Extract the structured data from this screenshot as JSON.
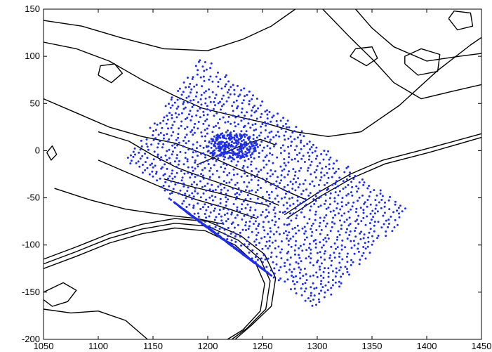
{
  "chart_data": {
    "type": "scatter",
    "title": "",
    "xlabel": "",
    "ylabel": "",
    "xlim": [
      1050,
      1450
    ],
    "ylim": [
      -200,
      150
    ],
    "x_ticks": [
      1050,
      1100,
      1150,
      1200,
      1250,
      1300,
      1350,
      1400,
      1450
    ],
    "y_ticks": [
      -200,
      -150,
      -100,
      -50,
      0,
      50,
      100,
      150
    ],
    "x_tick_labels": [
      "1050",
      "1100",
      "1150",
      "1200",
      "1250",
      "1300",
      "1350",
      "1400",
      "1450"
    ],
    "y_tick_labels": [
      "-200",
      "-150",
      "-100",
      "-50",
      "0",
      "50",
      "100",
      "150"
    ],
    "grid": false,
    "colors": {
      "points": "#1f2fe8",
      "contours": "#000000",
      "axes": "#000000"
    },
    "point_regions": {
      "outer_band_corners": [
        [
          1195,
          100
        ],
        [
          1385,
          -65
        ],
        [
          1300,
          -170
        ],
        [
          1125,
          -10
        ]
      ],
      "dense_core_center": [
        1222,
        5
      ],
      "dense_south_ridge": [
        [
          1175,
          -60
        ],
        [
          1250,
          -125
        ]
      ]
    },
    "contours": [
      [
        [
          1050,
          138
        ],
        [
          1085,
          132
        ],
        [
          1120,
          120
        ],
        [
          1160,
          108
        ],
        [
          1200,
          106
        ],
        [
          1232,
          118
        ],
        [
          1258,
          132
        ],
        [
          1280,
          150
        ]
      ],
      [
        [
          1050,
          115
        ],
        [
          1080,
          108
        ],
        [
          1110,
          95
        ],
        [
          1140,
          75
        ],
        [
          1170,
          58
        ],
        [
          1195,
          45
        ],
        [
          1220,
          38
        ],
        [
          1250,
          30
        ],
        [
          1280,
          20
        ],
        [
          1310,
          15
        ],
        [
          1340,
          20
        ],
        [
          1375,
          48
        ],
        [
          1410,
          85
        ],
        [
          1440,
          112
        ],
        [
          1450,
          120
        ]
      ],
      [
        [
          1305,
          150
        ],
        [
          1330,
          120
        ],
        [
          1352,
          95
        ],
        [
          1370,
          72
        ],
        [
          1395,
          55
        ],
        [
          1420,
          62
        ],
        [
          1450,
          70
        ]
      ],
      [
        [
          1335,
          150
        ],
        [
          1350,
          130
        ],
        [
          1370,
          110
        ],
        [
          1400,
          95
        ],
        [
          1430,
          100
        ],
        [
          1450,
          103
        ]
      ],
      [
        [
          1330,
          100
        ],
        [
          1345,
          90
        ],
        [
          1355,
          98
        ],
        [
          1350,
          110
        ],
        [
          1335,
          108
        ],
        [
          1330,
          100
        ]
      ],
      [
        [
          1380,
          92
        ],
        [
          1392,
          80
        ],
        [
          1410,
          84
        ],
        [
          1412,
          102
        ],
        [
          1395,
          108
        ],
        [
          1380,
          100
        ],
        [
          1380,
          92
        ]
      ],
      [
        [
          1420,
          140
        ],
        [
          1428,
          128
        ],
        [
          1442,
          132
        ],
        [
          1440,
          146
        ],
        [
          1425,
          148
        ],
        [
          1420,
          140
        ]
      ],
      [
        [
          1100,
          80
        ],
        [
          1112,
          72
        ],
        [
          1122,
          82
        ],
        [
          1115,
          92
        ],
        [
          1102,
          90
        ],
        [
          1100,
          80
        ]
      ],
      [
        [
          1050,
          55
        ],
        [
          1080,
          40
        ],
        [
          1110,
          25
        ],
        [
          1140,
          15
        ],
        [
          1170,
          8
        ],
        [
          1200,
          -5
        ],
        [
          1225,
          -18
        ],
        [
          1250,
          -30
        ],
        [
          1270,
          -42
        ],
        [
          1290,
          -52
        ]
      ],
      [
        [
          1100,
          20
        ],
        [
          1128,
          10
        ],
        [
          1150,
          -5
        ],
        [
          1172,
          -18
        ],
        [
          1195,
          -28
        ],
        [
          1220,
          -38
        ],
        [
          1245,
          -48
        ],
        [
          1265,
          -58
        ]
      ],
      [
        [
          1100,
          -10
        ],
        [
          1130,
          -25
        ],
        [
          1160,
          -40
        ],
        [
          1190,
          -52
        ],
        [
          1220,
          -62
        ],
        [
          1245,
          -72
        ]
      ],
      [
        [
          1060,
          -40
        ],
        [
          1092,
          -52
        ],
        [
          1125,
          -62
        ],
        [
          1160,
          -68
        ],
        [
          1190,
          -72
        ],
        [
          1215,
          -78
        ]
      ],
      [
        [
          1050,
          -115
        ],
        [
          1080,
          -102
        ],
        [
          1110,
          -88
        ],
        [
          1140,
          -78
        ],
        [
          1170,
          -72
        ],
        [
          1200,
          -75
        ],
        [
          1230,
          -90
        ],
        [
          1252,
          -110
        ],
        [
          1262,
          -135
        ],
        [
          1258,
          -165
        ],
        [
          1240,
          -185
        ],
        [
          1225,
          -200
        ]
      ],
      [
        [
          1050,
          -120
        ],
        [
          1080,
          -107
        ],
        [
          1110,
          -93
        ],
        [
          1140,
          -83
        ],
        [
          1170,
          -77
        ],
        [
          1200,
          -80
        ],
        [
          1228,
          -95
        ],
        [
          1248,
          -115
        ],
        [
          1257,
          -138
        ],
        [
          1253,
          -168
        ],
        [
          1236,
          -188
        ],
        [
          1222,
          -200
        ]
      ],
      [
        [
          1050,
          -125
        ],
        [
          1080,
          -112
        ],
        [
          1110,
          -98
        ],
        [
          1140,
          -88
        ],
        [
          1170,
          -82
        ],
        [
          1198,
          -85
        ],
        [
          1225,
          -100
        ],
        [
          1244,
          -120
        ],
        [
          1252,
          -141
        ],
        [
          1248,
          -170
        ],
        [
          1232,
          -190
        ],
        [
          1218,
          -200
        ]
      ],
      [
        [
          1270,
          -68
        ],
        [
          1300,
          -45
        ],
        [
          1330,
          -25
        ],
        [
          1360,
          -10
        ],
        [
          1400,
          2
        ],
        [
          1450,
          18
        ]
      ],
      [
        [
          1272,
          -72
        ],
        [
          1302,
          -49
        ],
        [
          1332,
          -29
        ],
        [
          1362,
          -14
        ],
        [
          1402,
          -2
        ],
        [
          1450,
          14
        ]
      ],
      [
        [
          1050,
          -150
        ],
        [
          1068,
          -140
        ],
        [
          1080,
          -148
        ],
        [
          1072,
          -160
        ],
        [
          1058,
          -165
        ],
        [
          1050,
          -158
        ]
      ],
      [
        [
          1050,
          -168
        ],
        [
          1075,
          -172
        ],
        [
          1100,
          -170
        ],
        [
          1125,
          -180
        ],
        [
          1145,
          -200
        ]
      ],
      [
        [
          1190,
          -15
        ],
        [
          1210,
          -5
        ],
        [
          1230,
          5
        ],
        [
          1248,
          12
        ],
        [
          1262,
          6
        ]
      ],
      [
        [
          1160,
          -30
        ],
        [
          1185,
          -38
        ],
        [
          1210,
          -45
        ],
        [
          1232,
          -52
        ],
        [
          1255,
          -58
        ]
      ],
      [
        [
          1053,
          -2
        ],
        [
          1057,
          -10
        ],
        [
          1062,
          -4
        ],
        [
          1058,
          5
        ],
        [
          1053,
          -2
        ]
      ]
    ]
  }
}
